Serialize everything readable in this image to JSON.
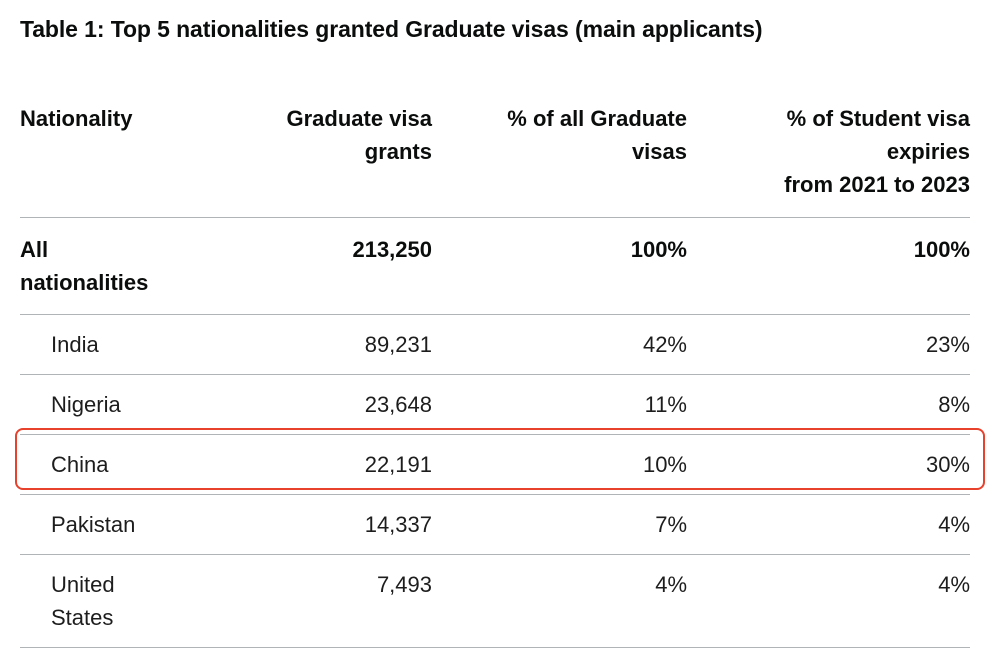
{
  "caption": "Table 1: Top 5 nationalities granted Graduate visas (main applicants)",
  "table": {
    "headers": [
      "Nationality",
      "Graduate visa grants",
      "% of all Graduate visas",
      "% of Student visa expiries from 2021 to 2023"
    ],
    "total": {
      "nationality": "All nationalities",
      "grants": "213,250",
      "pct_graduate": "100%",
      "pct_student": "100%"
    },
    "rows": [
      {
        "nationality": "India",
        "grants": "89,231",
        "pct_graduate": "42%",
        "pct_student": "23%"
      },
      {
        "nationality": "Nigeria",
        "grants": "23,648",
        "pct_graduate": "11%",
        "pct_student": "8%"
      },
      {
        "nationality": "China",
        "grants": "22,191",
        "pct_graduate": "10%",
        "pct_student": "30%"
      },
      {
        "nationality": "Pakistan",
        "grants": "14,337",
        "pct_graduate": "7%",
        "pct_student": "4%"
      },
      {
        "nationality": "United States",
        "grants": "7,493",
        "pct_graduate": "4%",
        "pct_student": "4%"
      }
    ]
  },
  "highlight": {
    "row_index": 2,
    "color": "#e8412c"
  },
  "colors": {
    "text": "#0b0c0c",
    "rule": "#b1b4b6"
  }
}
